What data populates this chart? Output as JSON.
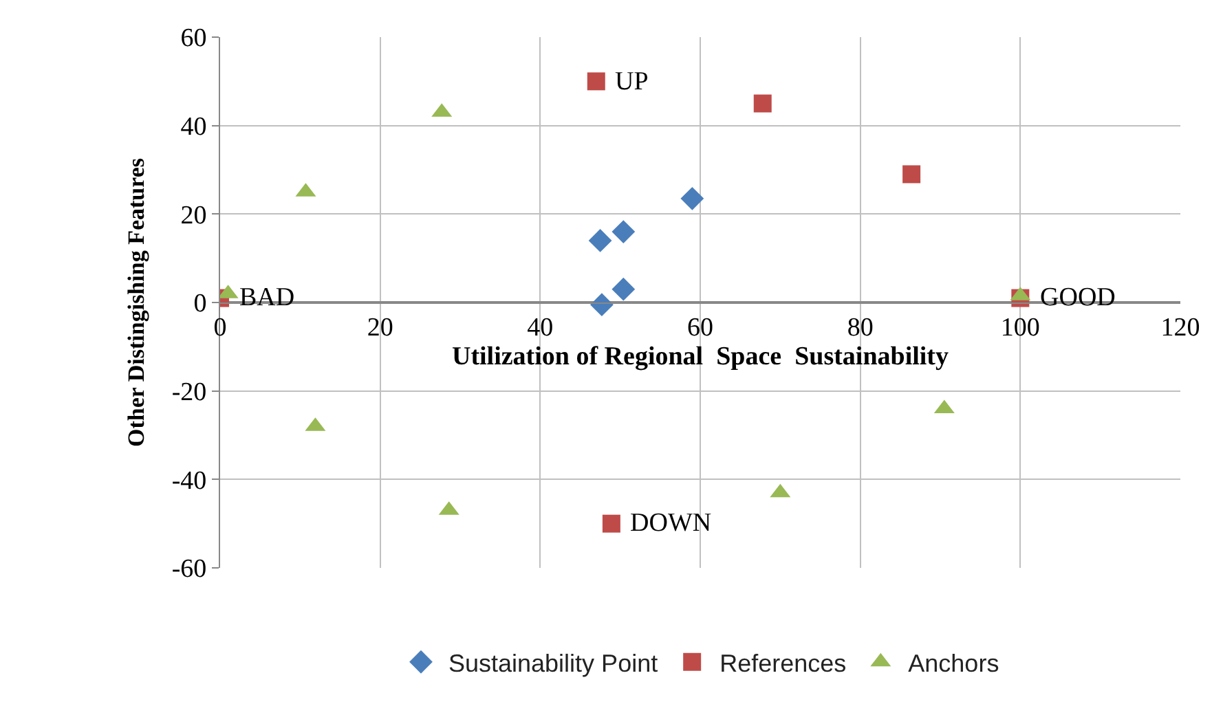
{
  "chart_data": {
    "type": "scatter",
    "xlabel": "Utilization of Regional  Space  Sustainability",
    "ylabel": "Other Distingishing Features",
    "series": [
      {
        "name": "Sustainability Point",
        "color": "#4a7ebb",
        "marker": "diamond",
        "x": [
          47.5,
          50.4,
          59,
          50.4,
          47.7
        ],
        "values": [
          14,
          16,
          23.5,
          3,
          -0.5
        ]
      },
      {
        "name": "References",
        "color": "#be4b48",
        "marker": "square",
        "x": [
          47,
          67.8,
          86.4,
          100,
          0,
          48.9
        ],
        "values": [
          50,
          45,
          29,
          1,
          1,
          -50
        ]
      },
      {
        "name": "Anchors",
        "color": "#98b954",
        "marker": "triangle",
        "x": [
          27.7,
          10.7,
          1,
          11.9,
          28.6,
          70,
          90.5,
          100
        ],
        "values": [
          43,
          25,
          2,
          -28,
          -47,
          -43,
          -24,
          1.5
        ]
      }
    ],
    "annotations": [
      {
        "text": "UP",
        "x": 47,
        "y": 50
      },
      {
        "text": "DOWN",
        "x": 48.9,
        "y": -50
      },
      {
        "text": "BAD",
        "x": 0,
        "y": 1
      },
      {
        "text": "GOOD",
        "x": 100,
        "y": 1
      }
    ],
    "xlim": [
      0,
      120
    ],
    "xticks": [
      0,
      20,
      40,
      60,
      80,
      100,
      120
    ],
    "ylim": [
      -60,
      60
    ],
    "yticks": [
      -60,
      -40,
      -20,
      0,
      20,
      40,
      60
    ],
    "grid": true,
    "legend": "bottom"
  }
}
